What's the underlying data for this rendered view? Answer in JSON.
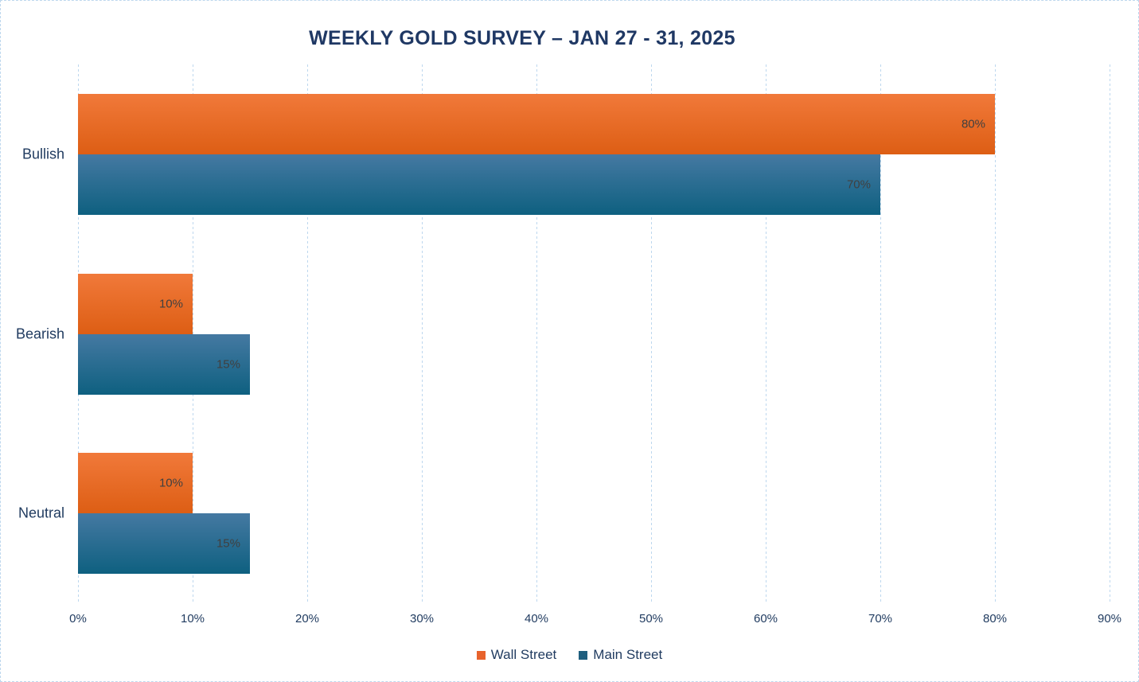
{
  "chart_data": {
    "type": "bar",
    "orientation": "horizontal",
    "title": "WEEKLY GOLD SURVEY – JAN 27 - 31, 2025",
    "categories": [
      "Bullish",
      "Bearish",
      "Neutral"
    ],
    "series": [
      {
        "name": "Wall Street",
        "values": [
          80,
          10,
          10
        ],
        "labels": [
          "80%",
          "10%",
          "10%"
        ],
        "color_top": "#F1793A",
        "color_bottom": "#DD5E14",
        "swatch": "#E8632C"
      },
      {
        "name": "Main Street",
        "values": [
          70,
          15,
          15
        ],
        "labels": [
          "70%",
          "15%",
          "15%"
        ],
        "color_top": "#4579A2",
        "color_bottom": "#0E6080",
        "swatch": "#1F5F7F"
      }
    ],
    "x_axis": {
      "min": 0,
      "max": 90,
      "step": 10,
      "ticks": [
        "0%",
        "10%",
        "20%",
        "30%",
        "40%",
        "50%",
        "60%",
        "70%",
        "80%",
        "90%"
      ]
    },
    "legend": {
      "position": "bottom",
      "items": [
        "Wall Street",
        "Main Street"
      ]
    },
    "grid": {
      "vertical": true,
      "style": "dashed",
      "color": "#BDD7EE"
    }
  },
  "styles": {
    "title_color": "#1F3864",
    "axis_text_color": "#1F3A5F",
    "data_label_color": "#404040",
    "gridline_color": "#BDD7EE",
    "border_color": "#BDD7EE",
    "background": "#FFFFFF"
  }
}
